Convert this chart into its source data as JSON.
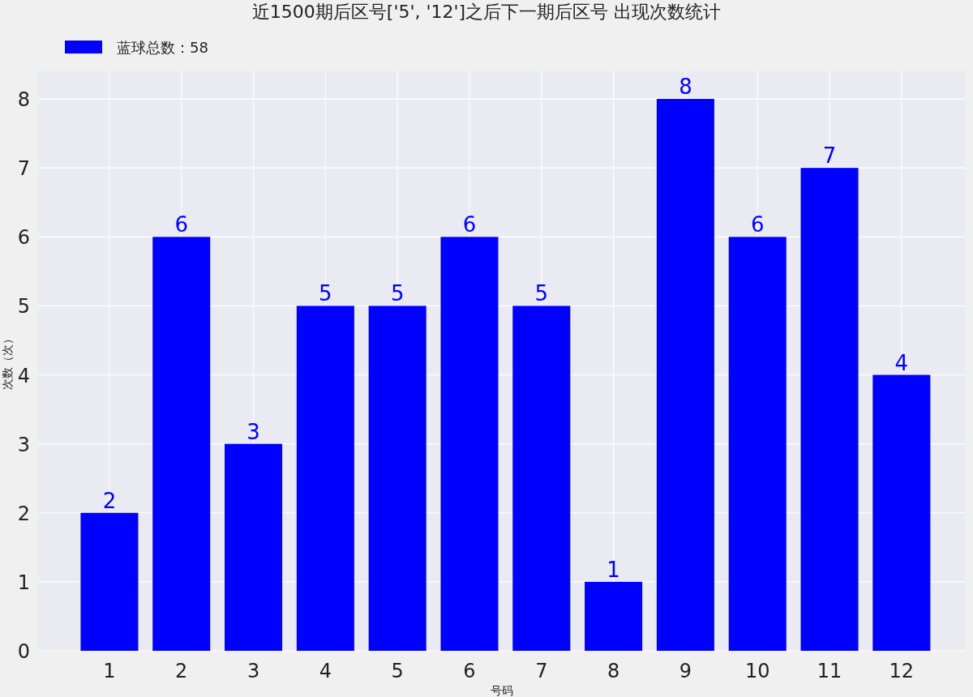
{
  "chart_data": {
    "type": "bar",
    "title": "近1500期后区号['5', '12']之后下一期后区号 出现次数统计",
    "xlabel": "号码",
    "ylabel": "次数（次）",
    "categories": [
      "1",
      "2",
      "3",
      "4",
      "5",
      "6",
      "7",
      "8",
      "9",
      "10",
      "11",
      "12"
    ],
    "series": [
      {
        "name": "蓝球总数：58",
        "color": "#0000ff",
        "values": [
          2,
          6,
          3,
          5,
          5,
          6,
          5,
          1,
          8,
          6,
          7,
          4
        ]
      }
    ],
    "ylim": [
      0,
      8.4
    ],
    "yticks": [
      0,
      1,
      2,
      3,
      4,
      5,
      6,
      7,
      8
    ],
    "grid": true,
    "legend": "top left",
    "data_labels": true
  }
}
